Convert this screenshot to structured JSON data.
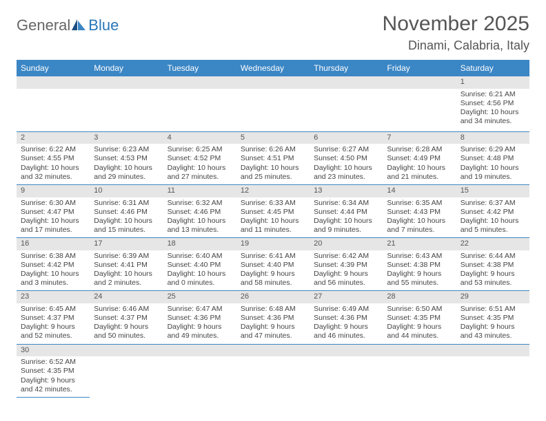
{
  "logo": {
    "part1": "General",
    "part2": "Blue"
  },
  "title": "November 2025",
  "location": "Dinami, Calabria, Italy",
  "header_bg": "#3b86c5",
  "daynum_bg": "#e6e6e6",
  "row_border": "#3b86c5",
  "weekdays": [
    "Sunday",
    "Monday",
    "Tuesday",
    "Wednesday",
    "Thursday",
    "Friday",
    "Saturday"
  ],
  "weeks": [
    [
      null,
      null,
      null,
      null,
      null,
      null,
      {
        "n": "1",
        "sr": "Sunrise: 6:21 AM",
        "ss": "Sunset: 4:56 PM",
        "dl": "Daylight: 10 hours and 34 minutes."
      }
    ],
    [
      {
        "n": "2",
        "sr": "Sunrise: 6:22 AM",
        "ss": "Sunset: 4:55 PM",
        "dl": "Daylight: 10 hours and 32 minutes."
      },
      {
        "n": "3",
        "sr": "Sunrise: 6:23 AM",
        "ss": "Sunset: 4:53 PM",
        "dl": "Daylight: 10 hours and 29 minutes."
      },
      {
        "n": "4",
        "sr": "Sunrise: 6:25 AM",
        "ss": "Sunset: 4:52 PM",
        "dl": "Daylight: 10 hours and 27 minutes."
      },
      {
        "n": "5",
        "sr": "Sunrise: 6:26 AM",
        "ss": "Sunset: 4:51 PM",
        "dl": "Daylight: 10 hours and 25 minutes."
      },
      {
        "n": "6",
        "sr": "Sunrise: 6:27 AM",
        "ss": "Sunset: 4:50 PM",
        "dl": "Daylight: 10 hours and 23 minutes."
      },
      {
        "n": "7",
        "sr": "Sunrise: 6:28 AM",
        "ss": "Sunset: 4:49 PM",
        "dl": "Daylight: 10 hours and 21 minutes."
      },
      {
        "n": "8",
        "sr": "Sunrise: 6:29 AM",
        "ss": "Sunset: 4:48 PM",
        "dl": "Daylight: 10 hours and 19 minutes."
      }
    ],
    [
      {
        "n": "9",
        "sr": "Sunrise: 6:30 AM",
        "ss": "Sunset: 4:47 PM",
        "dl": "Daylight: 10 hours and 17 minutes."
      },
      {
        "n": "10",
        "sr": "Sunrise: 6:31 AM",
        "ss": "Sunset: 4:46 PM",
        "dl": "Daylight: 10 hours and 15 minutes."
      },
      {
        "n": "11",
        "sr": "Sunrise: 6:32 AM",
        "ss": "Sunset: 4:46 PM",
        "dl": "Daylight: 10 hours and 13 minutes."
      },
      {
        "n": "12",
        "sr": "Sunrise: 6:33 AM",
        "ss": "Sunset: 4:45 PM",
        "dl": "Daylight: 10 hours and 11 minutes."
      },
      {
        "n": "13",
        "sr": "Sunrise: 6:34 AM",
        "ss": "Sunset: 4:44 PM",
        "dl": "Daylight: 10 hours and 9 minutes."
      },
      {
        "n": "14",
        "sr": "Sunrise: 6:35 AM",
        "ss": "Sunset: 4:43 PM",
        "dl": "Daylight: 10 hours and 7 minutes."
      },
      {
        "n": "15",
        "sr": "Sunrise: 6:37 AM",
        "ss": "Sunset: 4:42 PM",
        "dl": "Daylight: 10 hours and 5 minutes."
      }
    ],
    [
      {
        "n": "16",
        "sr": "Sunrise: 6:38 AM",
        "ss": "Sunset: 4:42 PM",
        "dl": "Daylight: 10 hours and 3 minutes."
      },
      {
        "n": "17",
        "sr": "Sunrise: 6:39 AM",
        "ss": "Sunset: 4:41 PM",
        "dl": "Daylight: 10 hours and 2 minutes."
      },
      {
        "n": "18",
        "sr": "Sunrise: 6:40 AM",
        "ss": "Sunset: 4:40 PM",
        "dl": "Daylight: 10 hours and 0 minutes."
      },
      {
        "n": "19",
        "sr": "Sunrise: 6:41 AM",
        "ss": "Sunset: 4:40 PM",
        "dl": "Daylight: 9 hours and 58 minutes."
      },
      {
        "n": "20",
        "sr": "Sunrise: 6:42 AM",
        "ss": "Sunset: 4:39 PM",
        "dl": "Daylight: 9 hours and 56 minutes."
      },
      {
        "n": "21",
        "sr": "Sunrise: 6:43 AM",
        "ss": "Sunset: 4:38 PM",
        "dl": "Daylight: 9 hours and 55 minutes."
      },
      {
        "n": "22",
        "sr": "Sunrise: 6:44 AM",
        "ss": "Sunset: 4:38 PM",
        "dl": "Daylight: 9 hours and 53 minutes."
      }
    ],
    [
      {
        "n": "23",
        "sr": "Sunrise: 6:45 AM",
        "ss": "Sunset: 4:37 PM",
        "dl": "Daylight: 9 hours and 52 minutes."
      },
      {
        "n": "24",
        "sr": "Sunrise: 6:46 AM",
        "ss": "Sunset: 4:37 PM",
        "dl": "Daylight: 9 hours and 50 minutes."
      },
      {
        "n": "25",
        "sr": "Sunrise: 6:47 AM",
        "ss": "Sunset: 4:36 PM",
        "dl": "Daylight: 9 hours and 49 minutes."
      },
      {
        "n": "26",
        "sr": "Sunrise: 6:48 AM",
        "ss": "Sunset: 4:36 PM",
        "dl": "Daylight: 9 hours and 47 minutes."
      },
      {
        "n": "27",
        "sr": "Sunrise: 6:49 AM",
        "ss": "Sunset: 4:36 PM",
        "dl": "Daylight: 9 hours and 46 minutes."
      },
      {
        "n": "28",
        "sr": "Sunrise: 6:50 AM",
        "ss": "Sunset: 4:35 PM",
        "dl": "Daylight: 9 hours and 44 minutes."
      },
      {
        "n": "29",
        "sr": "Sunrise: 6:51 AM",
        "ss": "Sunset: 4:35 PM",
        "dl": "Daylight: 9 hours and 43 minutes."
      }
    ],
    [
      {
        "n": "30",
        "sr": "Sunrise: 6:52 AM",
        "ss": "Sunset: 4:35 PM",
        "dl": "Daylight: 9 hours and 42 minutes."
      },
      null,
      null,
      null,
      null,
      null,
      null
    ]
  ]
}
